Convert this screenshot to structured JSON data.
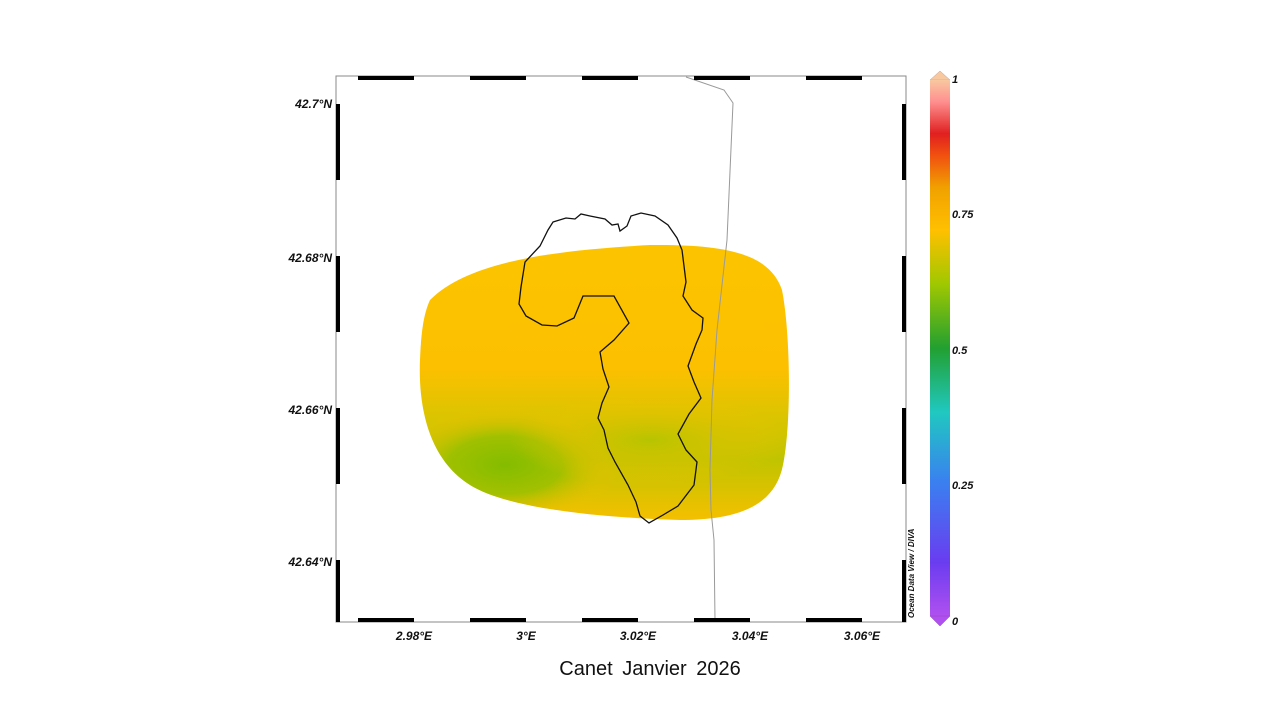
{
  "map": {
    "lat_labels": [
      "42.7°N",
      "42.68°N",
      "42.66°N",
      "42.64°N"
    ],
    "lon_labels": [
      "2.98°E",
      "3°E",
      "3.02°E",
      "3.04°E",
      "3.06°E"
    ],
    "credit": "Ocean Data View / DIVA",
    "lon_range": [
      2.966,
      3.067
    ],
    "lat_range": [
      42.632,
      42.704
    ]
  },
  "colorbar": {
    "labels": [
      "1",
      "0.75",
      "0.5",
      "0.25",
      "0"
    ],
    "min": 0,
    "max": 1,
    "colors": [
      "#b050f0",
      "#6a3cf0",
      "#3a80f0",
      "#20c8c0",
      "#22a030",
      "#a0c800",
      "#ffc000",
      "#f0a000",
      "#f05010",
      "#e02020",
      "#ff9090",
      "#f8c8a0"
    ]
  },
  "field": {
    "dominant_color": "#fcc200",
    "low_color": "#8cc000",
    "value_range_shown": [
      0.55,
      0.77
    ]
  },
  "caption": {
    "text": "Canet   Janvier 2026"
  }
}
